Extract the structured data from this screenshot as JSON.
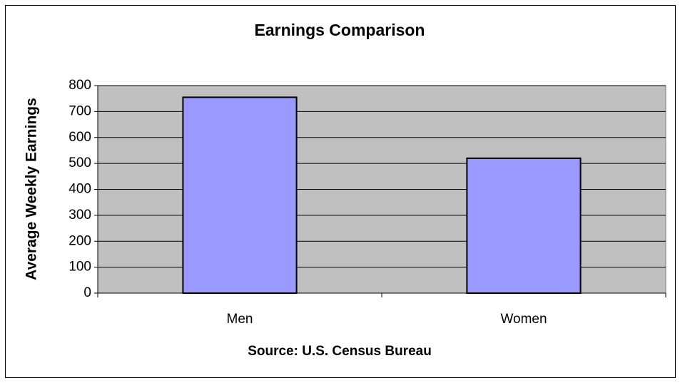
{
  "chart_data": {
    "type": "bar",
    "title": "Earnings Comparison",
    "y_label": "Average Weekly Earnings",
    "x_label": "Source: U.S. Census Bureau",
    "categories": [
      "Men",
      "Women"
    ],
    "values": [
      755,
      520
    ],
    "color": "#9999ff",
    "ylim": [
      0,
      800
    ],
    "yticks": [
      0,
      100,
      200,
      300,
      400,
      500,
      600,
      700,
      800
    ],
    "grid": true
  }
}
